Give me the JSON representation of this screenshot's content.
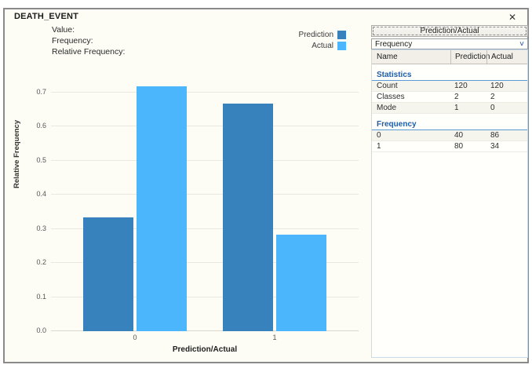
{
  "window": {
    "title": "DEATH_EVENT",
    "close_glyph": "✕"
  },
  "hover_readout": {
    "value_label": "Value:",
    "frequency_label": "Frequency:",
    "relative_frequency_label": "Relative Frequency:"
  },
  "chart_data": {
    "type": "bar",
    "categories": [
      "0",
      "1"
    ],
    "series": [
      {
        "name": "Prediction",
        "color": "#3781bd",
        "values": [
          0.3333,
          0.6667
        ]
      },
      {
        "name": "Actual",
        "color": "#4bb6fc",
        "values": [
          0.7167,
          0.2833
        ]
      }
    ],
    "xlabel": "Prediction/Actual",
    "ylabel": "Relative Frequency",
    "ylim": [
      0,
      0.768
    ],
    "yticks": [
      0,
      0.1,
      0.2,
      0.3,
      0.4,
      0.5,
      0.6,
      0.7
    ],
    "grid": true,
    "legend_position": "top-right"
  },
  "side_panel": {
    "header_button_label": "Prediction/Actual",
    "dropdown": {
      "selected": "Frequency",
      "chevron_glyph": "˅"
    },
    "table": {
      "columns": [
        "Name",
        "Prediction",
        "Actual"
      ],
      "sections": [
        {
          "title": "Statistics",
          "rows": [
            {
              "name": "Count",
              "prediction": "120",
              "actual": "120"
            },
            {
              "name": "Classes",
              "prediction": "2",
              "actual": "2"
            },
            {
              "name": "Mode",
              "prediction": "1",
              "actual": "0"
            }
          ]
        },
        {
          "title": "Frequency",
          "rows": [
            {
              "name": "0",
              "prediction": "40",
              "actual": "86"
            },
            {
              "name": "1",
              "prediction": "80",
              "actual": "34"
            }
          ]
        }
      ]
    }
  },
  "colors": {
    "prediction_bar": "#3781bd",
    "actual_bar": "#4bb6fc",
    "section_header_text": "#1f5da8",
    "section_underline": "#5b9bd5",
    "table_border": "#c9dcee",
    "window_border": "#8a8a8a",
    "window_background": "#fdfdf6"
  }
}
